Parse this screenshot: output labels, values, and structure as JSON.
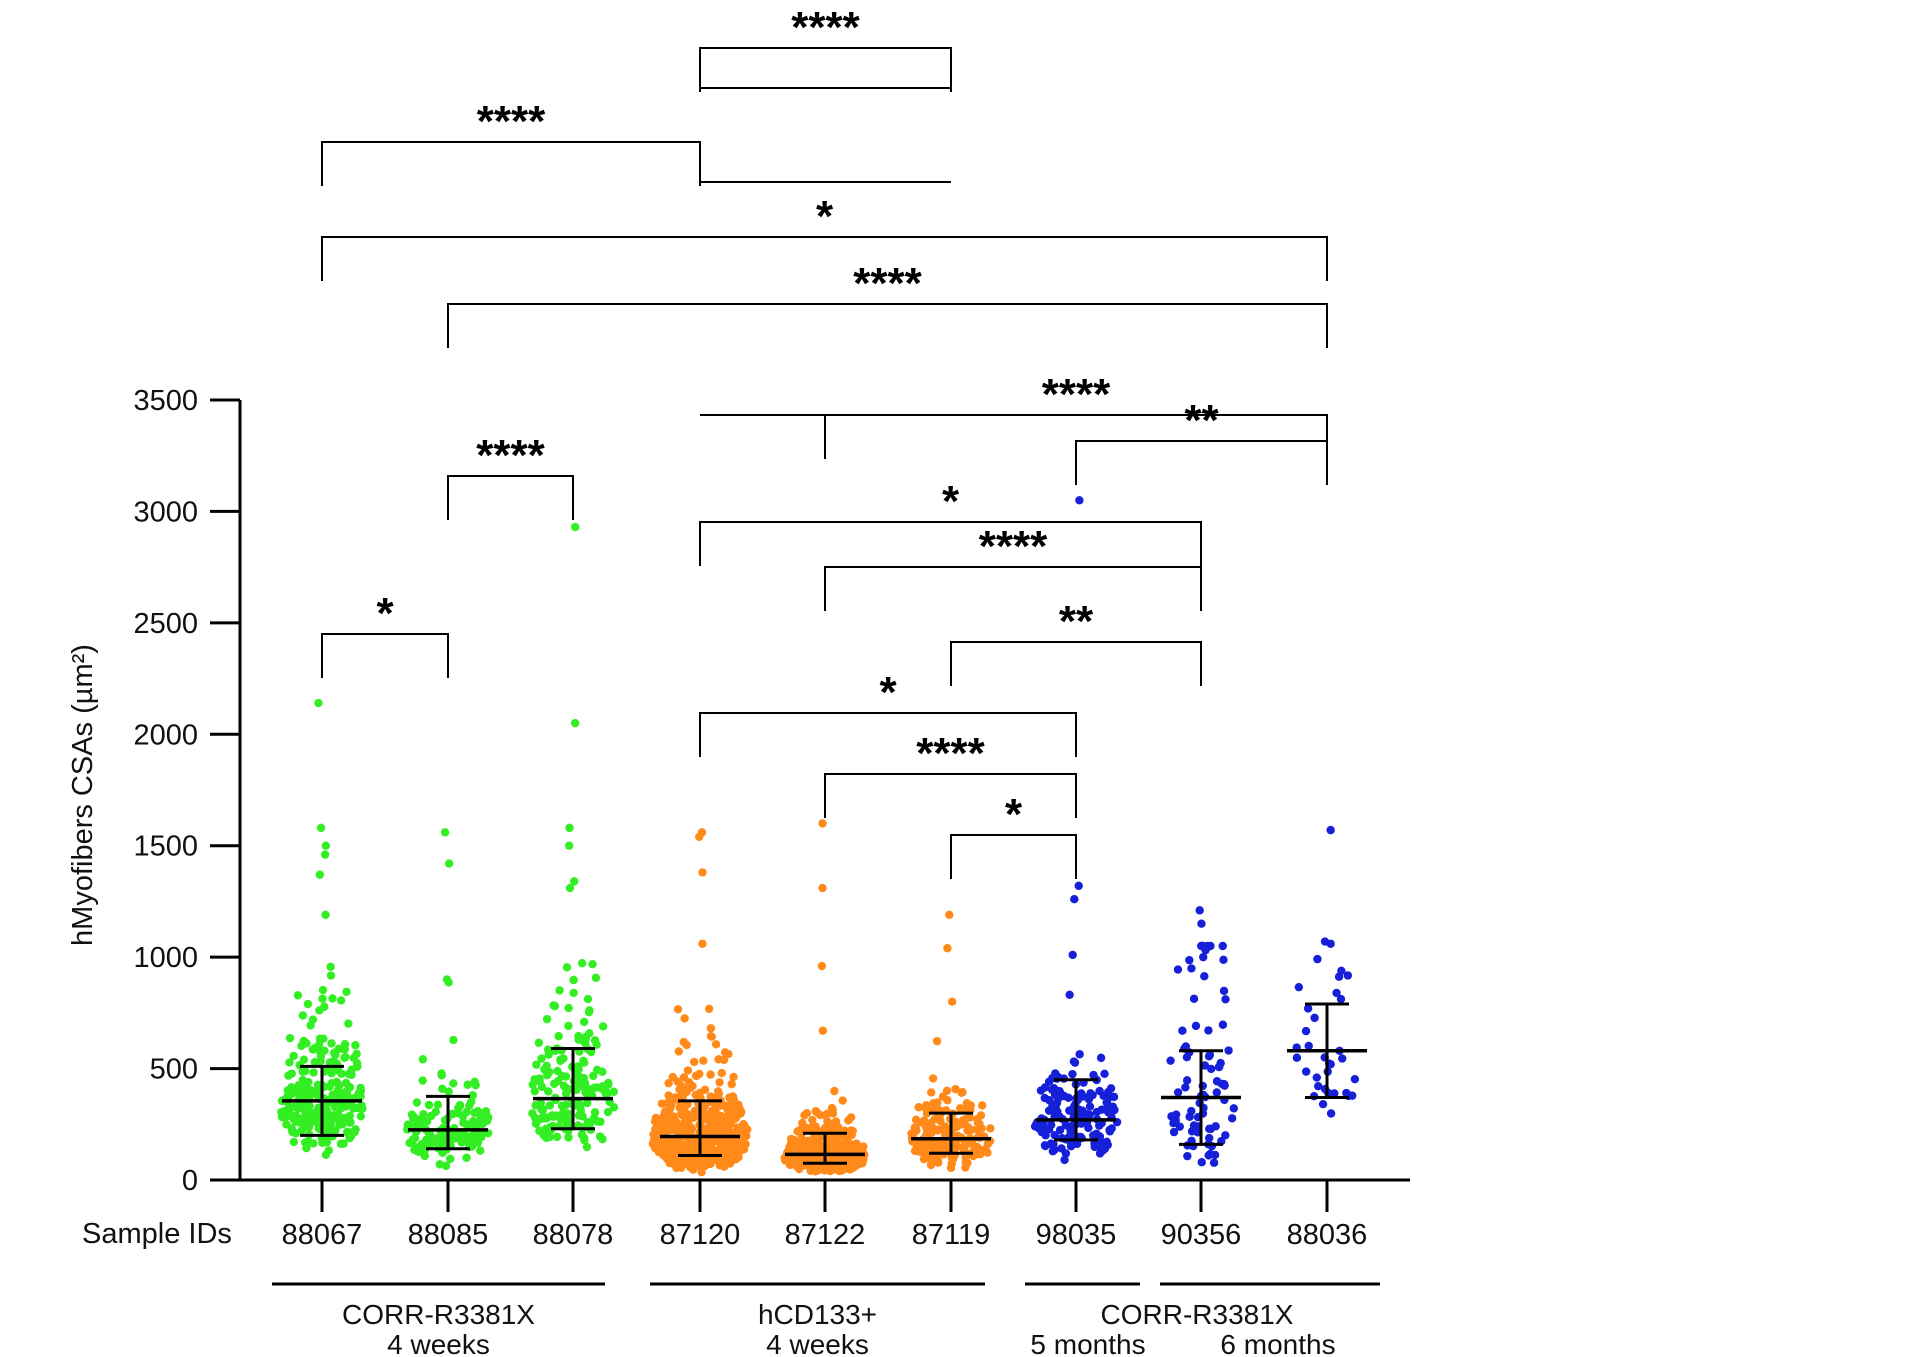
{
  "chart_data": {
    "type": "scatter",
    "title": "",
    "ylabel": "hMyofibers CSAs (µm²)",
    "xlabel_prefix": "Sample IDs",
    "ylim": [
      0,
      3500
    ],
    "yticks": [
      0,
      500,
      1000,
      1500,
      2000,
      2500,
      3000,
      3500
    ],
    "grid": false,
    "colors": {
      "green": "#33ee22",
      "orange": "#ff8a1a",
      "blue": "#1520d8"
    },
    "samples": [
      {
        "id": "88067",
        "color": "green",
        "median": 355,
        "q1": 200,
        "q3": 510,
        "n": 260,
        "outliers": [
          2140,
          1580,
          1500,
          1460,
          1370,
          1190
        ]
      },
      {
        "id": "88085",
        "color": "green",
        "median": 225,
        "q1": 140,
        "q3": 375,
        "n": 130,
        "outliers": [
          1560,
          1420,
          900
        ]
      },
      {
        "id": "88078",
        "color": "green",
        "median": 365,
        "q1": 230,
        "q3": 590,
        "n": 170,
        "outliers": [
          2930,
          2050,
          1580,
          1500,
          1340,
          1310
        ]
      },
      {
        "id": "87120",
        "color": "orange",
        "median": 195,
        "q1": 110,
        "q3": 355,
        "n": 520,
        "outliers": [
          1560,
          1540,
          1380,
          1060
        ]
      },
      {
        "id": "87122",
        "color": "orange",
        "median": 115,
        "q1": 75,
        "q3": 210,
        "n": 280,
        "outliers": [
          1600,
          1310,
          960,
          670
        ]
      },
      {
        "id": "87119",
        "color": "orange",
        "median": 185,
        "q1": 120,
        "q3": 300,
        "n": 170,
        "outliers": [
          1190,
          1040,
          800
        ]
      },
      {
        "id": "98035",
        "color": "blue",
        "median": 270,
        "q1": 180,
        "q3": 450,
        "n": 150,
        "outliers": [
          3050,
          1320,
          1260,
          1010
        ]
      },
      {
        "id": "90356",
        "color": "blue",
        "median": 370,
        "q1": 160,
        "q3": 580,
        "n": 80,
        "outliers": [
          1210,
          1150,
          1000
        ]
      },
      {
        "id": "88036",
        "color": "blue",
        "median": 580,
        "q1": 370,
        "q3": 790,
        "n": 32,
        "outliers": [
          1570,
          1070,
          1060
        ]
      }
    ],
    "groups": [
      {
        "lines": [
          "CORR-R3381X",
          "4 weeks"
        ],
        "from": 0,
        "to": 2
      },
      {
        "lines": [
          "hCD133+",
          "4 weeks"
        ],
        "from": 3,
        "to": 5
      },
      {
        "lines": [
          "CORR-R3381X"
        ],
        "from": 6,
        "to": 8,
        "sublabels": [
          "5 months",
          "6 months"
        ]
      }
    ],
    "comparisons": [
      {
        "label": "****",
        "from": 3,
        "to": 5,
        "drop_to": 2,
        "level": 0
      },
      {
        "label": "****",
        "from": 0,
        "to": 3,
        "drop_to": 4,
        "level": 1
      },
      {
        "label": "*",
        "from": 0,
        "to": 8,
        "level": 2
      },
      {
        "label": "****",
        "from": 1,
        "to": 8,
        "level": 3
      },
      {
        "label": "****",
        "from": 4,
        "to": 8,
        "drop_to": 3,
        "level": 4
      },
      {
        "label": "**",
        "from": 6,
        "to": 8,
        "level": 5
      },
      {
        "label": "****",
        "from": 1,
        "to": 2,
        "level": 6
      },
      {
        "label": "*",
        "from": 3,
        "to": 7,
        "level": 7
      },
      {
        "label": "****",
        "from": 4,
        "to": 7,
        "level": 8
      },
      {
        "label": "**",
        "from": 5,
        "to": 7,
        "level": 9
      },
      {
        "label": "*",
        "from": 0,
        "to": 1,
        "level": 10
      },
      {
        "label": "*",
        "from": 3,
        "to": 6,
        "level": 11
      },
      {
        "label": "****",
        "from": 4,
        "to": 6,
        "level": 12
      },
      {
        "label": "*",
        "from": 5,
        "to": 6,
        "level": 13
      }
    ]
  }
}
